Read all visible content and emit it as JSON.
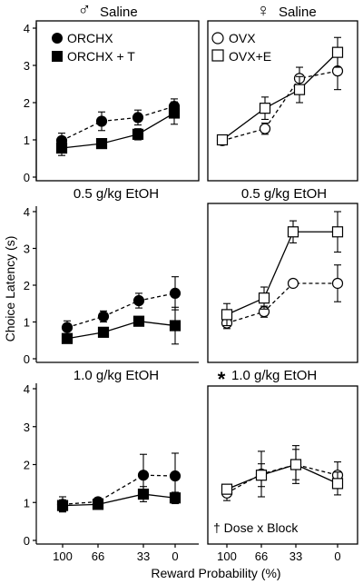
{
  "chart_data": {
    "type": "line",
    "ylabel": "Choice Latency (s)",
    "xlabel": "Reward Probability (%)",
    "x_tick_labels": [
      "100",
      "66",
      "33",
      "0"
    ],
    "ylim": [
      0,
      4
    ],
    "y_tick_labels": [
      "0",
      "1",
      "2",
      "3",
      "4"
    ],
    "legend_male": [
      {
        "symbol": "filled-circle",
        "label": "ORCHX"
      },
      {
        "symbol": "filled-square",
        "label": "ORCHX + T"
      }
    ],
    "legend_female": [
      {
        "symbol": "open-circle",
        "label": "OVX"
      },
      {
        "symbol": "open-square",
        "label": "OVX+E"
      }
    ],
    "panels": [
      {
        "id": "male-saline",
        "sex_symbol": "♂",
        "title": "Saline",
        "series": [
          {
            "name": "ORCHX",
            "marker": "filled-circle",
            "dashed": true,
            "values": [
              0.98,
              1.5,
              1.6,
              1.9
            ],
            "errors": [
              0.2,
              0.25,
              0.2,
              0.2
            ]
          },
          {
            "name": "ORCHX + T",
            "marker": "filled-square",
            "dashed": false,
            "values": [
              0.78,
              0.9,
              1.15,
              1.72
            ],
            "errors": [
              0.2,
              0.1,
              0.15,
              0.3
            ]
          }
        ]
      },
      {
        "id": "female-saline",
        "sex_symbol": "♀",
        "title": "Saline",
        "series": [
          {
            "name": "OVX",
            "marker": "open-circle",
            "dashed": true,
            "values": [
              0.98,
              1.3,
              2.65,
              2.85
            ],
            "errors": [
              0.1,
              0.15,
              0.3,
              0.5
            ]
          },
          {
            "name": "OVX+E",
            "marker": "open-square",
            "dashed": false,
            "values": [
              1.0,
              1.85,
              2.35,
              3.35
            ],
            "errors": [
              0.1,
              0.3,
              0.35,
              0.4
            ]
          }
        ]
      },
      {
        "id": "male-low",
        "title": "0.5 g/kg EtOH",
        "series": [
          {
            "name": "ORCHX",
            "marker": "filled-circle",
            "dashed": true,
            "values": [
              0.85,
              1.15,
              1.58,
              1.78
            ],
            "errors": [
              0.18,
              0.15,
              0.2,
              0.45
            ]
          },
          {
            "name": "ORCHX + T",
            "marker": "filled-square",
            "dashed": false,
            "values": [
              0.55,
              0.72,
              1.02,
              0.9
            ],
            "errors": [
              0.1,
              0.1,
              0.1,
              0.5
            ]
          }
        ]
      },
      {
        "id": "female-low",
        "title": "0.5 g/kg EtOH",
        "series": [
          {
            "name": "OVX",
            "marker": "open-circle",
            "dashed": true,
            "values": [
              0.97,
              1.28,
              2.05,
              2.05
            ],
            "errors": [
              0.15,
              0.15,
              0.0,
              0.5
            ]
          },
          {
            "name": "OVX+E",
            "marker": "open-square",
            "dashed": false,
            "values": [
              1.2,
              1.65,
              3.45,
              3.45
            ],
            "errors": [
              0.3,
              0.3,
              0.3,
              0.55
            ]
          }
        ]
      },
      {
        "id": "male-high",
        "title": "1.0 g/kg EtOH",
        "series": [
          {
            "name": "ORCHX",
            "marker": "filled-circle",
            "dashed": true,
            "values": [
              0.95,
              1.02,
              1.72,
              1.7
            ],
            "errors": [
              0.2,
              0.1,
              0.55,
              0.6
            ]
          },
          {
            "name": "ORCHX + T",
            "marker": "filled-square",
            "dashed": false,
            "values": [
              0.92,
              0.95,
              1.22,
              1.12
            ],
            "errors": [
              0.15,
              0.1,
              0.2,
              0.15
            ]
          }
        ]
      },
      {
        "id": "female-high",
        "title": "1.0 g/kg EtOH",
        "title_mark": "*",
        "footnote": "† Dose x Block",
        "series": [
          {
            "name": "OVX",
            "marker": "open-circle",
            "dashed": true,
            "values": [
              1.25,
              1.75,
              2.0,
              1.72
            ],
            "errors": [
              0.2,
              0.6,
              0.5,
              0.35
            ]
          },
          {
            "name": "OVX+E",
            "marker": "open-square",
            "dashed": false,
            "values": [
              1.35,
              1.72,
              2.0,
              1.5
            ],
            "errors": [
              0.1,
              0.3,
              0.4,
              0.3
            ]
          }
        ]
      }
    ]
  }
}
